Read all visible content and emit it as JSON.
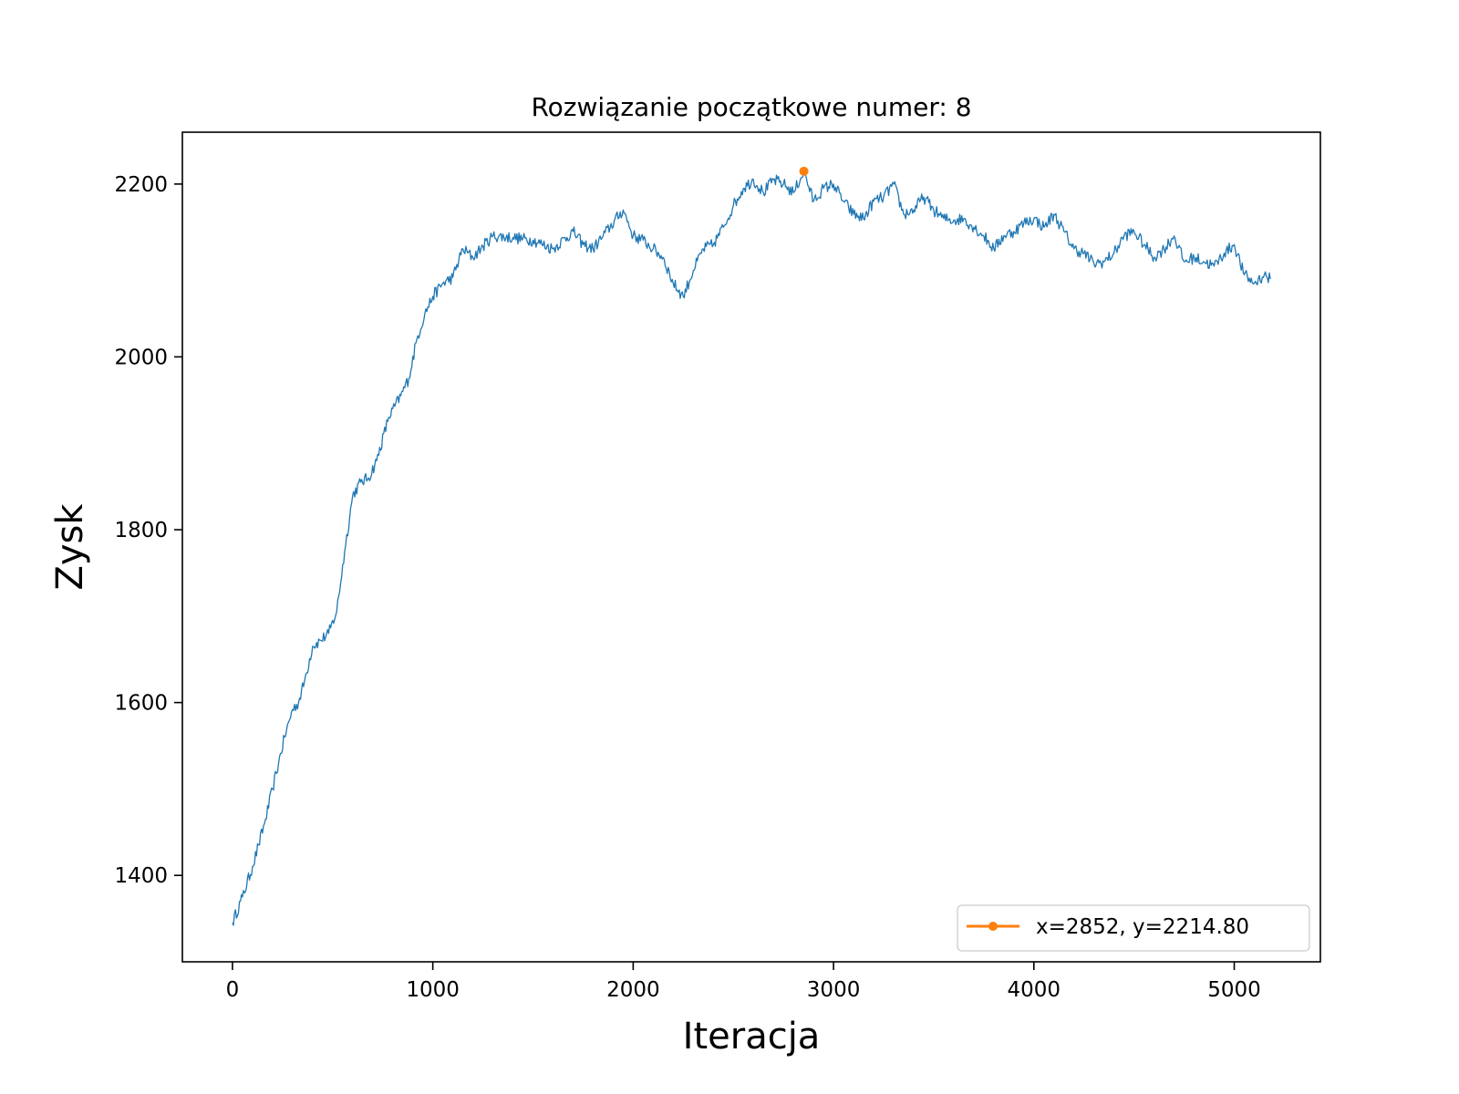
{
  "chart_data": {
    "type": "line",
    "title": "Rozwiązanie początkowe numer: 8",
    "xlabel": "Iteracja",
    "ylabel": "Zysk",
    "xlim": [
      -250,
      5430
    ],
    "ylim": [
      1300,
      2260
    ],
    "xticks": [
      0,
      1000,
      2000,
      3000,
      4000,
      5000
    ],
    "yticks": [
      1400,
      1600,
      1800,
      2000,
      2200
    ],
    "grid": false,
    "legend_position": "lower-right",
    "colors": {
      "series": "#1f77b4",
      "marker": "#ff7f0e"
    },
    "series": [
      {
        "anchors": [
          [
            0,
            1345
          ],
          [
            50,
            1375
          ],
          [
            100,
            1410
          ],
          [
            130,
            1435
          ],
          [
            160,
            1460
          ],
          [
            200,
            1500
          ],
          [
            230,
            1530
          ],
          [
            260,
            1560
          ],
          [
            300,
            1592
          ],
          [
            330,
            1600
          ],
          [
            360,
            1625
          ],
          [
            400,
            1665
          ],
          [
            440,
            1672
          ],
          [
            480,
            1680
          ],
          [
            520,
            1705
          ],
          [
            560,
            1775
          ],
          [
            600,
            1840
          ],
          [
            640,
            1855
          ],
          [
            680,
            1860
          ],
          [
            720,
            1880
          ],
          [
            780,
            1930
          ],
          [
            840,
            1955
          ],
          [
            880,
            1975
          ],
          [
            920,
            2020
          ],
          [
            960,
            2050
          ],
          [
            1000,
            2070
          ],
          [
            1050,
            2085
          ],
          [
            1100,
            2092
          ],
          [
            1150,
            2125
          ],
          [
            1200,
            2115
          ],
          [
            1250,
            2128
          ],
          [
            1300,
            2140
          ],
          [
            1400,
            2138
          ],
          [
            1500,
            2135
          ],
          [
            1600,
            2125
          ],
          [
            1700,
            2145
          ],
          [
            1750,
            2130
          ],
          [
            1800,
            2125
          ],
          [
            1850,
            2140
          ],
          [
            1950,
            2170
          ],
          [
            2000,
            2140
          ],
          [
            2050,
            2135
          ],
          [
            2100,
            2125
          ],
          [
            2150,
            2115
          ],
          [
            2200,
            2085
          ],
          [
            2250,
            2070
          ],
          [
            2300,
            2100
          ],
          [
            2350,
            2125
          ],
          [
            2400,
            2130
          ],
          [
            2450,
            2150
          ],
          [
            2500,
            2175
          ],
          [
            2550,
            2195
          ],
          [
            2600,
            2205
          ],
          [
            2650,
            2190
          ],
          [
            2700,
            2205
          ],
          [
            2750,
            2200
          ],
          [
            2800,
            2190
          ],
          [
            2852,
            2214.8
          ],
          [
            2900,
            2180
          ],
          [
            2950,
            2195
          ],
          [
            3000,
            2200
          ],
          [
            3050,
            2180
          ],
          [
            3100,
            2165
          ],
          [
            3150,
            2160
          ],
          [
            3200,
            2180
          ],
          [
            3250,
            2185
          ],
          [
            3300,
            2200
          ],
          [
            3350,
            2165
          ],
          [
            3400,
            2170
          ],
          [
            3450,
            2185
          ],
          [
            3500,
            2170
          ],
          [
            3550,
            2160
          ],
          [
            3600,
            2158
          ],
          [
            3650,
            2160
          ],
          [
            3700,
            2150
          ],
          [
            3750,
            2140
          ],
          [
            3800,
            2125
          ],
          [
            3850,
            2140
          ],
          [
            3900,
            2145
          ],
          [
            3950,
            2155
          ],
          [
            4000,
            2160
          ],
          [
            4050,
            2150
          ],
          [
            4100,
            2165
          ],
          [
            4150,
            2145
          ],
          [
            4200,
            2125
          ],
          [
            4250,
            2120
          ],
          [
            4300,
            2108
          ],
          [
            4350,
            2110
          ],
          [
            4400,
            2120
          ],
          [
            4450,
            2140
          ],
          [
            4500,
            2145
          ],
          [
            4550,
            2130
          ],
          [
            4600,
            2115
          ],
          [
            4650,
            2125
          ],
          [
            4700,
            2140
          ],
          [
            4750,
            2110
          ],
          [
            4800,
            2115
          ],
          [
            4850,
            2110
          ],
          [
            4900,
            2105
          ],
          [
            4950,
            2120
          ],
          [
            5000,
            2130
          ],
          [
            5050,
            2095
          ],
          [
            5100,
            2085
          ],
          [
            5150,
            2095
          ],
          [
            5180,
            2090
          ]
        ]
      }
    ],
    "highlight_point": {
      "x": 2852,
      "y": 2214.8
    },
    "legend_label": "x=2852, y=2214.80"
  }
}
